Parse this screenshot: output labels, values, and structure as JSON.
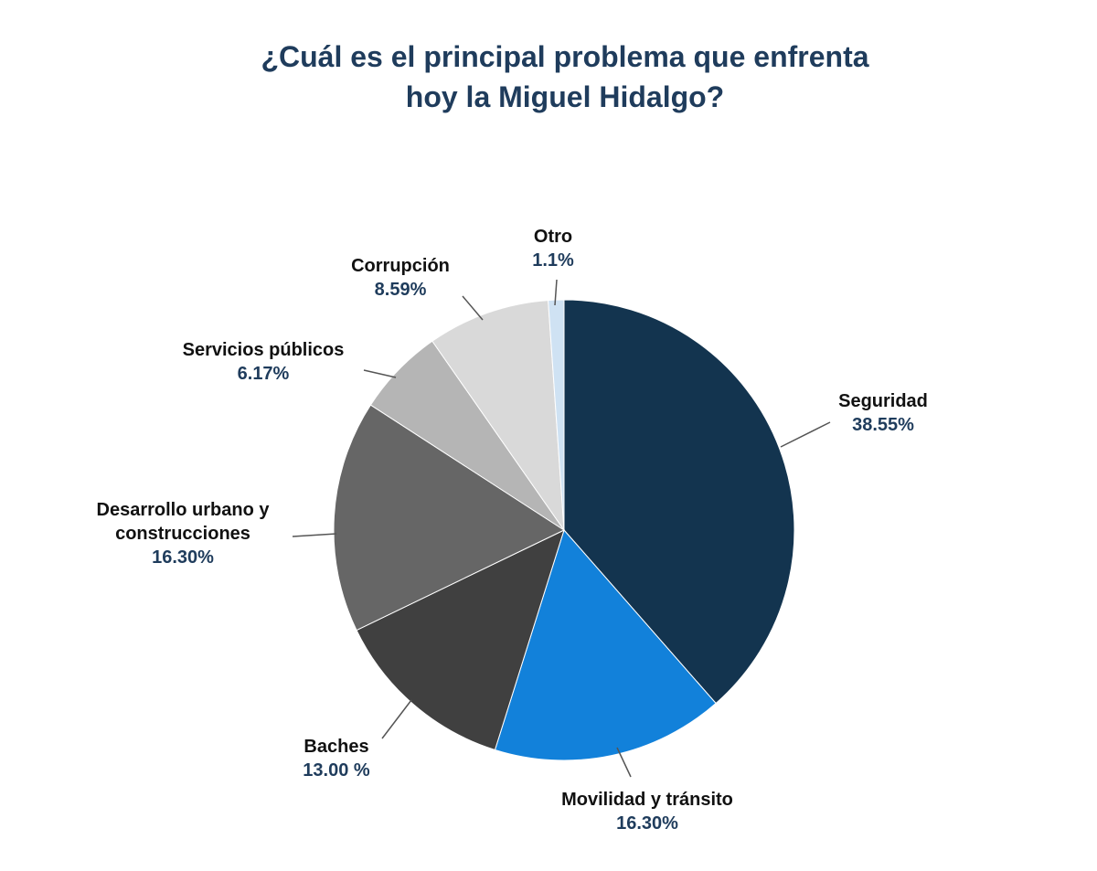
{
  "title_lines": [
    "¿Cuál es el principal problema que enfrenta",
    "hoy la Miguel Hidalgo?"
  ],
  "chart_data": {
    "type": "pie",
    "title": "¿Cuál es el principal problema que enfrenta hoy la Miguel Hidalgo?",
    "start_angle_deg": 0,
    "direction": "clockwise",
    "slices": [
      {
        "label": "Seguridad",
        "label_lines": [
          "Seguridad"
        ],
        "value": 38.55,
        "value_text": "38.55%",
        "color": "#13344f"
      },
      {
        "label": "Movilidad y tránsito",
        "label_lines": [
          "Movilidad y tránsito"
        ],
        "value": 16.3,
        "value_text": "16.30%",
        "color": "#1281da"
      },
      {
        "label": "Baches",
        "label_lines": [
          "Baches"
        ],
        "value": 13.0,
        "value_text": "13.00 %",
        "color": "#404040"
      },
      {
        "label": "Desarrollo urbano y construcciones",
        "label_lines": [
          "Desarrollo urbano y",
          "construcciones"
        ],
        "value": 16.3,
        "value_text": "16.30%",
        "color": "#666666"
      },
      {
        "label": "Servicios públicos",
        "label_lines": [
          "Servicios públicos"
        ],
        "value": 6.17,
        "value_text": "6.17%",
        "color": "#b5b5b5"
      },
      {
        "label": "Corrupción",
        "label_lines": [
          "Corrupción"
        ],
        "value": 8.59,
        "value_text": "8.59%",
        "color": "#d9d9d9"
      },
      {
        "label": "Otro",
        "label_lines": [
          "Otro"
        ],
        "value": 1.1,
        "value_text": "1.1%",
        "color": "#cfe2f3"
      }
    ]
  }
}
